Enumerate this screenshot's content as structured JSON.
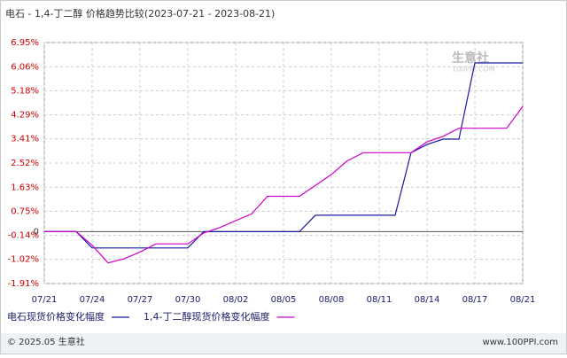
{
  "chart_data": {
    "type": "line",
    "title": "电石 - 1,4-丁二醇 价格趋势比较(2023-07-21 - 2023-08-21)",
    "categories": [
      "07/21",
      null,
      null,
      "07/24",
      null,
      null,
      "07/27",
      null,
      null,
      "07/30",
      null,
      null,
      "08/02",
      null,
      null,
      "08/05",
      null,
      null,
      "08/08",
      null,
      null,
      "08/11",
      null,
      null,
      "08/14",
      null,
      null,
      "08/17",
      null,
      null,
      "08/21"
    ],
    "series": [
      {
        "name": "电石现货价格变化幅度",
        "color": "#1a1aa6",
        "values": [
          0,
          0,
          0,
          -0.6,
          -0.6,
          -0.6,
          -0.6,
          -0.6,
          -0.6,
          -0.6,
          0,
          0,
          0,
          0,
          0,
          0,
          0,
          0.6,
          0.6,
          0.6,
          0.6,
          0.6,
          0.6,
          2.9,
          3.2,
          3.4,
          3.4,
          6.2,
          6.2,
          6.2,
          6.2
        ]
      },
      {
        "name": "1,4-丁二醇现货价格变化幅度",
        "color": "#cc00cc",
        "values": [
          0,
          0,
          0,
          -0.5,
          -1.15,
          -1.0,
          -0.75,
          -0.45,
          -0.45,
          -0.45,
          -0.05,
          0.15,
          0.4,
          0.65,
          1.3,
          1.3,
          1.3,
          1.7,
          2.1,
          2.6,
          2.9,
          2.9,
          2.9,
          2.9,
          3.3,
          3.5,
          3.8,
          3.8,
          3.8,
          3.8,
          4.6
        ]
      }
    ],
    "ylim": [
      -1.91,
      6.95
    ],
    "yticks": [
      {
        "value": 6.95,
        "label": "6.95%"
      },
      {
        "value": 6.06,
        "label": "6.06%"
      },
      {
        "value": 5.18,
        "label": "5.18%"
      },
      {
        "value": 4.29,
        "label": "4.29%"
      },
      {
        "value": 3.41,
        "label": "3.41%"
      },
      {
        "value": 2.52,
        "label": "2.52%"
      },
      {
        "value": 1.63,
        "label": "1.63%"
      },
      {
        "value": 0.75,
        "label": "0.75%"
      },
      {
        "value": -0.14,
        "label": "-0.14%"
      },
      {
        "value": -1.02,
        "label": "-1.02%"
      },
      {
        "value": -1.91,
        "label": "-1.91%"
      },
      0
    ],
    "grid": true,
    "watermark": [
      "生意社",
      "100PPI.COM"
    ],
    "footer": {
      "left": "© 2025.05 生意社",
      "right": "www.100PPI.com"
    }
  }
}
